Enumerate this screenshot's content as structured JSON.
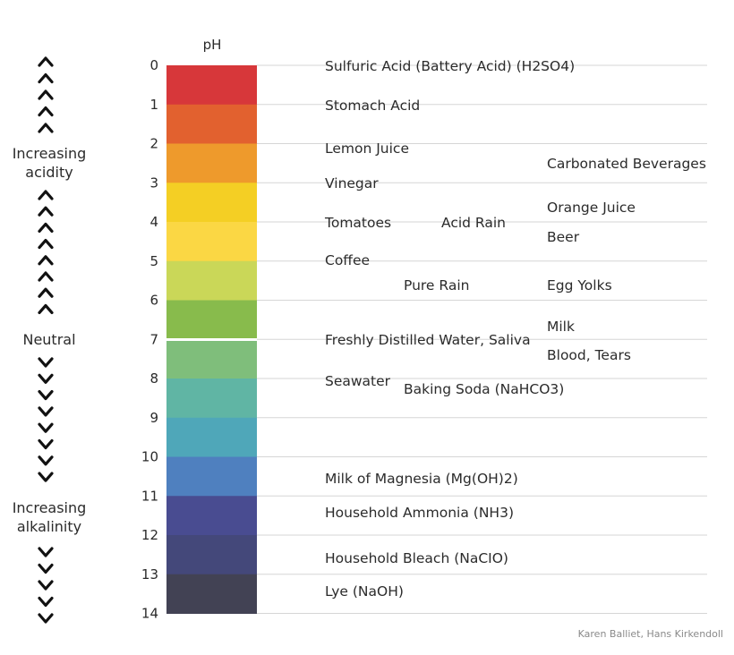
{
  "scale": {
    "axis_title": "pH",
    "levels": [
      "0",
      "1",
      "2",
      "3",
      "4",
      "5",
      "6",
      "7",
      "8",
      "9",
      "10",
      "11",
      "12",
      "13",
      "14"
    ],
    "band_colors": [
      "#d7373a",
      "#e2612f",
      "#ee9a2c",
      "#f4cf24",
      "#fbd744",
      "#cad758",
      "#88bb4c",
      "#7fbe7b",
      "#60b5a4",
      "#4fa7b9",
      "#4f80bf",
      "#494c91",
      "#44487a",
      "#424254"
    ]
  },
  "side_labels": {
    "acidity": [
      "Increasing",
      "acidity"
    ],
    "neutral": "Neutral",
    "alkalinity": [
      "Increasing",
      "alkalinity"
    ]
  },
  "substances": [
    {
      "name": "Sulfuric Acid (Battery Acid) (H2SO4)",
      "ph": 0
    },
    {
      "name": "Stomach Acid",
      "ph": 1
    },
    {
      "name": "Lemon Juice",
      "ph": 2
    },
    {
      "name": "Carbonated Beverages",
      "ph": 2.5
    },
    {
      "name": "Vinegar",
      "ph": 3
    },
    {
      "name": "Orange Juice",
      "ph": 3.5
    },
    {
      "name": "Tomatoes",
      "ph": 4
    },
    {
      "name": "Acid Rain",
      "ph": 4
    },
    {
      "name": "Beer",
      "ph": 4.5
    },
    {
      "name": "Coffee",
      "ph": 5
    },
    {
      "name": "Pure Rain",
      "ph": 5.6
    },
    {
      "name": "Egg Yolks",
      "ph": 5.6
    },
    {
      "name": "Milk",
      "ph": 6.6
    },
    {
      "name": "Freshly Distilled Water, Saliva",
      "ph": 7
    },
    {
      "name": "Blood, Tears",
      "ph": 7.4
    },
    {
      "name": "Seawater",
      "ph": 8
    },
    {
      "name": "Baking Soda (NaHCO3)",
      "ph": 8.3
    },
    {
      "name": "Milk of Magnesia (Mg(OH)2)",
      "ph": 10.5
    },
    {
      "name": "Household Ammonia (NH3)",
      "ph": 11.3
    },
    {
      "name": "Household Bleach (NaCIO)",
      "ph": 12.5
    },
    {
      "name": "Lye (NaOH)",
      "ph": 13.3
    }
  ],
  "credit": "Karen Balliet, Hans Kirkendoll"
}
